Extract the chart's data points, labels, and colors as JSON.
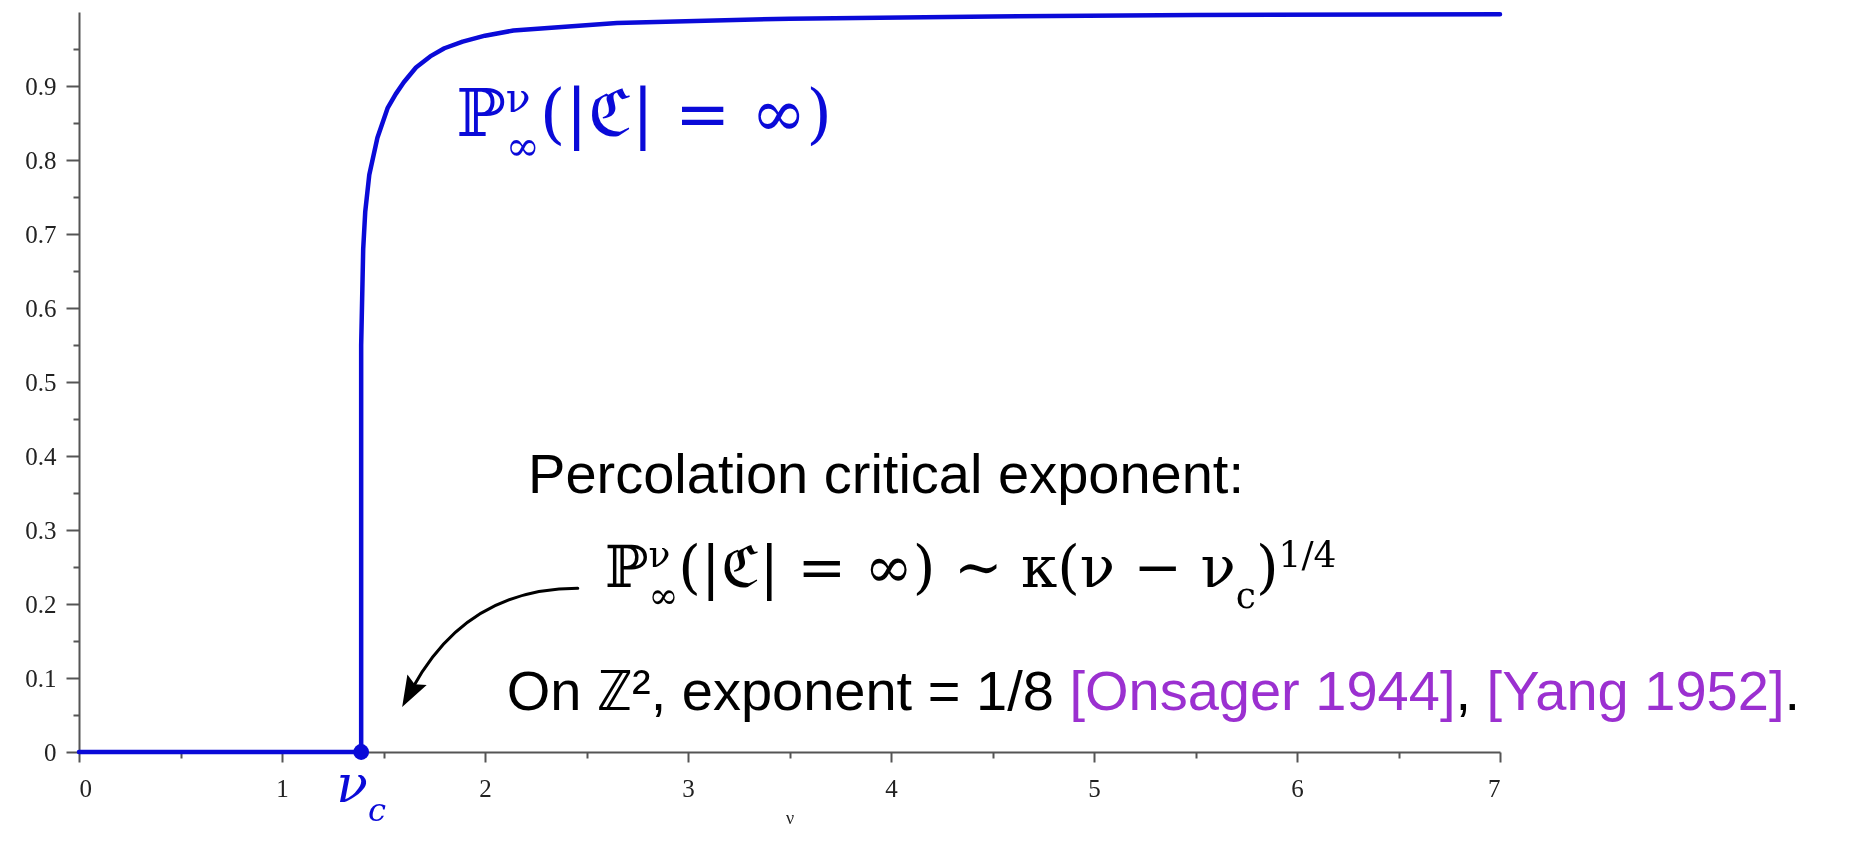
{
  "chart_data": {
    "type": "line",
    "xlabel": "ν",
    "xlim": [
      0,
      7
    ],
    "xticks": [
      0,
      {
        "value": 0.5,
        "label": null
      },
      1,
      {
        "value": 1.5,
        "label": null
      },
      2,
      {
        "value": 2.5,
        "label": null
      },
      3,
      {
        "value": 3.5,
        "label": null
      },
      4,
      {
        "value": 4.5,
        "label": null
      },
      5,
      {
        "value": 5.5,
        "label": null
      },
      6,
      {
        "value": 6.5,
        "label": null
      },
      7
    ],
    "ylim": [
      0,
      1
    ],
    "yticks": [
      0,
      {
        "value": 0.05,
        "label": null
      },
      0.1,
      {
        "value": 0.15,
        "label": null
      },
      0.2,
      {
        "value": 0.25,
        "label": null
      },
      0.3,
      {
        "value": 0.35,
        "label": null
      },
      0.4,
      {
        "value": 0.45,
        "label": null
      },
      0.5,
      {
        "value": 0.55,
        "label": null
      },
      0.6,
      {
        "value": 0.65,
        "label": null
      },
      0.7,
      {
        "value": 0.75,
        "label": null
      },
      0.8,
      {
        "value": 0.85,
        "label": null
      },
      0.9,
      {
        "value": 0.95,
        "label": null
      }
    ],
    "series": [
      {
        "name": "ℙ$^{ν}$$_{∞}$(|ℭ| = ∞)",
        "color": "#0a0ad8",
        "x": [
          0,
          1.39,
          1.39,
          1.4,
          1.41,
          1.43,
          1.47,
          1.52,
          1.56,
          1.6,
          1.66,
          1.73,
          1.8,
          1.89,
          2,
          2.14,
          2.65,
          3.5,
          4.5,
          5.5,
          7
        ],
        "values": [
          0,
          0,
          0.55,
          0.68,
          0.73,
          0.78,
          0.83,
          0.87,
          0.889,
          0.905,
          0.925,
          0.94,
          0.951,
          0.96,
          0.968,
          0.975,
          0.985,
          0.991,
          0.994,
          0.996,
          0.997
        ]
      },
      {
        "type": "scatter",
        "color": "#0a0ad8",
        "x": [
          1.39
        ],
        "values": [
          0
        ]
      }
    ],
    "annotations": [
      {
        "text": "ν$_{c}$",
        "x": 1.39,
        "y": 0
      },
      "Percolation critical exponent:",
      "ℙ$^{ν}$$_{∞}$(|ℭ| = ∞) ∼ κ(ν − ν$_{c}$)$^{1/4}$",
      "On ℤ², exponent = 1/8 [Onsager 1944], [Yang 1952]."
    ]
  }
}
